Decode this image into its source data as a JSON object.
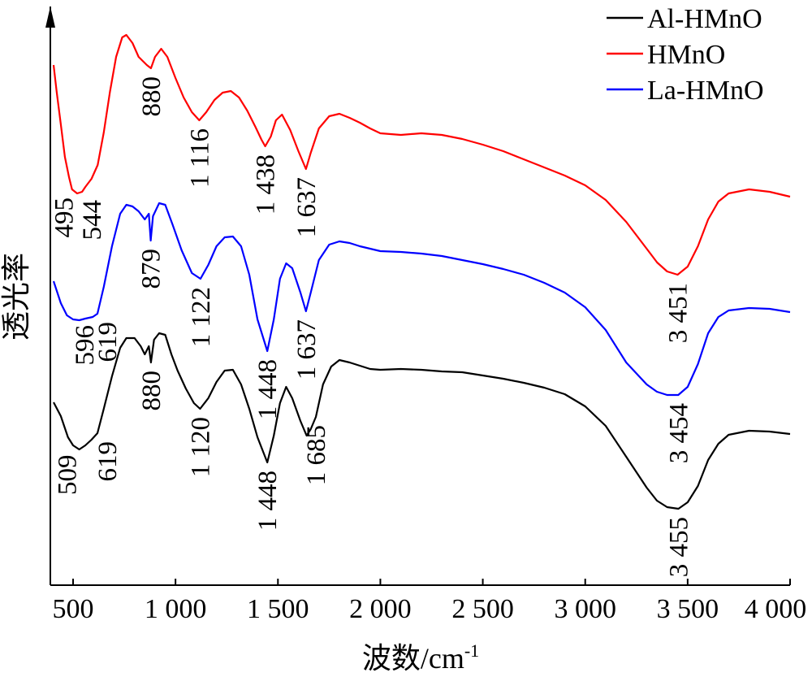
{
  "chart_data": {
    "type": "line",
    "xlabel_main": "波数/cm",
    "xlabel_sup": "-1",
    "ylabel": "透光率",
    "xlim": [
      400,
      4000
    ],
    "x_ticks": [
      {
        "value": 500,
        "label": "500"
      },
      {
        "value": 1000,
        "label": "1 000"
      },
      {
        "value": 1500,
        "label": "1 500"
      },
      {
        "value": 2000,
        "label": "2 000"
      },
      {
        "value": 2500,
        "label": "2 500"
      },
      {
        "value": 3000,
        "label": "3 000"
      },
      {
        "value": 3500,
        "label": "3 500"
      },
      {
        "value": 4000,
        "label": "4 000"
      }
    ],
    "legend_position": "top-right",
    "y_tick_labels_shown": false,
    "grid": false,
    "series": [
      {
        "name": "Al-HMnO",
        "color": "#000000",
        "points": [
          [
            405,
            487
          ],
          [
            440,
            504
          ],
          [
            475,
            530
          ],
          [
            500,
            540
          ],
          [
            530,
            545
          ],
          [
            560,
            540
          ],
          [
            590,
            533
          ],
          [
            619,
            525
          ],
          [
            650,
            495
          ],
          [
            690,
            455
          ],
          [
            730,
            420
          ],
          [
            760,
            408
          ],
          [
            800,
            408
          ],
          [
            830,
            418
          ],
          [
            850,
            428
          ],
          [
            870,
            418
          ],
          [
            880,
            438
          ],
          [
            895,
            410
          ],
          [
            920,
            402
          ],
          [
            950,
            404
          ],
          [
            980,
            428
          ],
          [
            1010,
            448
          ],
          [
            1050,
            470
          ],
          [
            1090,
            488
          ],
          [
            1120,
            495
          ],
          [
            1160,
            482
          ],
          [
            1200,
            462
          ],
          [
            1240,
            448
          ],
          [
            1280,
            447
          ],
          [
            1320,
            465
          ],
          [
            1360,
            495
          ],
          [
            1400,
            530
          ],
          [
            1448,
            561
          ],
          [
            1480,
            528
          ],
          [
            1510,
            488
          ],
          [
            1540,
            468
          ],
          [
            1570,
            482
          ],
          [
            1610,
            510
          ],
          [
            1640,
            528
          ],
          [
            1660,
            520
          ],
          [
            1685,
            505
          ],
          [
            1720,
            465
          ],
          [
            1760,
            443
          ],
          [
            1800,
            435
          ],
          [
            1850,
            438
          ],
          [
            1900,
            442
          ],
          [
            1950,
            446
          ],
          [
            2000,
            447
          ],
          [
            2100,
            446
          ],
          [
            2200,
            447
          ],
          [
            2300,
            449
          ],
          [
            2400,
            450
          ],
          [
            2500,
            454
          ],
          [
            2600,
            458
          ],
          [
            2700,
            463
          ],
          [
            2800,
            469
          ],
          [
            2900,
            477
          ],
          [
            3000,
            492
          ],
          [
            3100,
            516
          ],
          [
            3200,
            554
          ],
          [
            3300,
            592
          ],
          [
            3350,
            608
          ],
          [
            3400,
            616
          ],
          [
            3455,
            618
          ],
          [
            3500,
            610
          ],
          [
            3550,
            590
          ],
          [
            3600,
            558
          ],
          [
            3650,
            538
          ],
          [
            3700,
            527
          ],
          [
            3800,
            522
          ],
          [
            3900,
            523
          ],
          [
            4000,
            526
          ]
        ]
      },
      {
        "name": "HMnO",
        "color": "#ff0000",
        "points": [
          [
            405,
            72
          ],
          [
            420,
            105
          ],
          [
            440,
            145
          ],
          [
            460,
            185
          ],
          [
            480,
            210
          ],
          [
            495,
            225
          ],
          [
            520,
            230
          ],
          [
            544,
            228
          ],
          [
            560,
            222
          ],
          [
            590,
            212
          ],
          [
            620,
            195
          ],
          [
            650,
            155
          ],
          [
            680,
            105
          ],
          [
            710,
            62
          ],
          [
            740,
            38
          ],
          [
            760,
            35
          ],
          [
            790,
            45
          ],
          [
            820,
            62
          ],
          [
            860,
            72
          ],
          [
            880,
            76
          ],
          [
            900,
            62
          ],
          [
            930,
            52
          ],
          [
            960,
            62
          ],
          [
            1000,
            88
          ],
          [
            1040,
            112
          ],
          [
            1080,
            130
          ],
          [
            1116,
            140
          ],
          [
            1150,
            130
          ],
          [
            1190,
            115
          ],
          [
            1230,
            106
          ],
          [
            1270,
            104
          ],
          [
            1310,
            112
          ],
          [
            1350,
            128
          ],
          [
            1390,
            148
          ],
          [
            1420,
            164
          ],
          [
            1438,
            172
          ],
          [
            1465,
            160
          ],
          [
            1490,
            140
          ],
          [
            1520,
            133
          ],
          [
            1560,
            152
          ],
          [
            1600,
            178
          ],
          [
            1637,
            200
          ],
          [
            1660,
            180
          ],
          [
            1700,
            150
          ],
          [
            1750,
            135
          ],
          [
            1800,
            132
          ],
          [
            1850,
            137
          ],
          [
            1900,
            143
          ],
          [
            1950,
            150
          ],
          [
            2000,
            156
          ],
          [
            2100,
            158
          ],
          [
            2200,
            156
          ],
          [
            2300,
            158
          ],
          [
            2400,
            163
          ],
          [
            2500,
            170
          ],
          [
            2600,
            178
          ],
          [
            2700,
            188
          ],
          [
            2800,
            198
          ],
          [
            2900,
            208
          ],
          [
            3000,
            220
          ],
          [
            3100,
            238
          ],
          [
            3200,
            265
          ],
          [
            3300,
            298
          ],
          [
            3351,
            315
          ],
          [
            3400,
            326
          ],
          [
            3451,
            330
          ],
          [
            3500,
            320
          ],
          [
            3550,
            295
          ],
          [
            3600,
            262
          ],
          [
            3650,
            240
          ],
          [
            3700,
            230
          ],
          [
            3800,
            225
          ],
          [
            3900,
            228
          ],
          [
            4000,
            234
          ]
        ]
      },
      {
        "name": "La-HMnO",
        "color": "#0000ff",
        "points": [
          [
            405,
            338
          ],
          [
            440,
            365
          ],
          [
            470,
            380
          ],
          [
            500,
            385
          ],
          [
            530,
            386
          ],
          [
            560,
            384
          ],
          [
            596,
            382
          ],
          [
            619,
            378
          ],
          [
            650,
            345
          ],
          [
            690,
            295
          ],
          [
            730,
            255
          ],
          [
            760,
            244
          ],
          [
            790,
            246
          ],
          [
            820,
            252
          ],
          [
            850,
            262
          ],
          [
            870,
            255
          ],
          [
            879,
            288
          ],
          [
            890,
            258
          ],
          [
            920,
            242
          ],
          [
            950,
            244
          ],
          [
            985,
            268
          ],
          [
            1030,
            300
          ],
          [
            1080,
            328
          ],
          [
            1122,
            335
          ],
          [
            1160,
            318
          ],
          [
            1200,
            295
          ],
          [
            1240,
            284
          ],
          [
            1280,
            283
          ],
          [
            1320,
            295
          ],
          [
            1360,
            330
          ],
          [
            1400,
            385
          ],
          [
            1448,
            424
          ],
          [
            1480,
            385
          ],
          [
            1510,
            335
          ],
          [
            1540,
            316
          ],
          [
            1570,
            322
          ],
          [
            1610,
            352
          ],
          [
            1637,
            375
          ],
          [
            1660,
            352
          ],
          [
            1700,
            312
          ],
          [
            1750,
            293
          ],
          [
            1800,
            289
          ],
          [
            1850,
            291
          ],
          [
            1900,
            295
          ],
          [
            1950,
            298
          ],
          [
            2000,
            301
          ],
          [
            2100,
            302
          ],
          [
            2200,
            304
          ],
          [
            2300,
            307
          ],
          [
            2400,
            312
          ],
          [
            2500,
            317
          ],
          [
            2600,
            323
          ],
          [
            2700,
            330
          ],
          [
            2800,
            340
          ],
          [
            2900,
            352
          ],
          [
            3000,
            370
          ],
          [
            3100,
            398
          ],
          [
            3200,
            438
          ],
          [
            3300,
            465
          ],
          [
            3350,
            474
          ],
          [
            3400,
            478
          ],
          [
            3454,
            478
          ],
          [
            3500,
            468
          ],
          [
            3550,
            440
          ],
          [
            3600,
            402
          ],
          [
            3650,
            382
          ],
          [
            3700,
            374
          ],
          [
            3800,
            371
          ],
          [
            3900,
            372
          ],
          [
            4000,
            376
          ]
        ]
      }
    ],
    "annotations": [
      {
        "label": "880",
        "series": "HMnO",
        "x": 880
      },
      {
        "label": "1 116",
        "series": "HMnO",
        "x": 1116
      },
      {
        "label": "1 438",
        "series": "HMnO",
        "x": 1438
      },
      {
        "label": "1 637",
        "series": "HMnO",
        "x": 1637
      },
      {
        "label": "495",
        "series": "HMnO",
        "x": 495
      },
      {
        "label": "544",
        "series": "HMnO",
        "x": 544
      },
      {
        "label": "3 451",
        "series": "HMnO",
        "x": 3451
      },
      {
        "label": "879",
        "series": "La-HMnO",
        "x": 879
      },
      {
        "label": "1 122",
        "series": "La-HMnO",
        "x": 1122
      },
      {
        "label": "1 448",
        "series": "La-HMnO",
        "x": 1448
      },
      {
        "label": "1 637",
        "series": "La-HMnO",
        "x": 1637
      },
      {
        "label": "596",
        "series": "La-HMnO",
        "x": 596
      },
      {
        "label": "619",
        "series": "La-HMnO",
        "x": 619
      },
      {
        "label": "3 454",
        "series": "La-HMnO",
        "x": 3454
      },
      {
        "label": "880",
        "series": "Al-HMnO",
        "x": 880
      },
      {
        "label": "1 120",
        "series": "Al-HMnO",
        "x": 1120
      },
      {
        "label": "1 448",
        "series": "Al-HMnO",
        "x": 1448
      },
      {
        "label": "1 685",
        "series": "Al-HMnO",
        "x": 1685
      },
      {
        "label": "509",
        "series": "Al-HMnO",
        "x": 509
      },
      {
        "label": "619",
        "series": "Al-HMnO",
        "x": 619
      },
      {
        "label": "3 455",
        "series": "Al-HMnO",
        "x": 3455
      }
    ]
  }
}
